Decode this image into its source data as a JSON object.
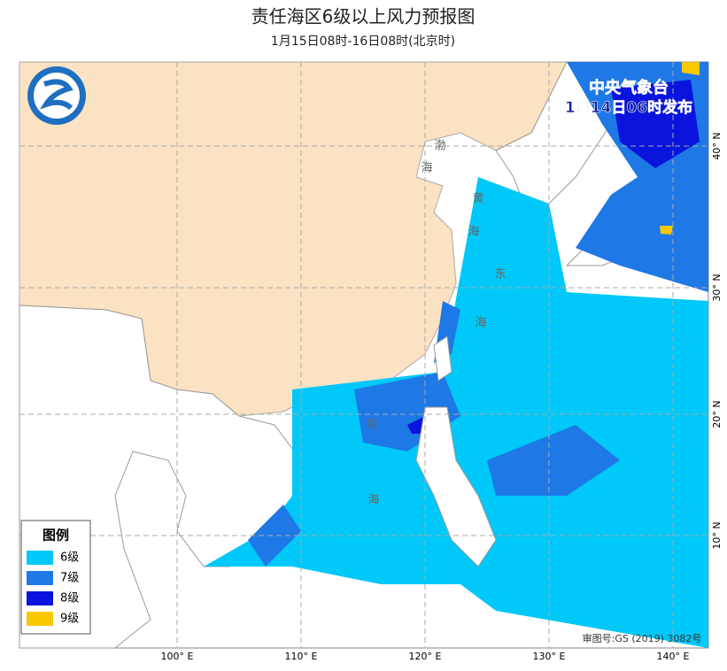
{
  "header": {
    "title": "责任海区6级以上风力预报图",
    "subtitle": "1月15日08时-16日08时(北京时)"
  },
  "issuer": {
    "agency": "中央气象台",
    "issued": "1月14日06时发布"
  },
  "legend": {
    "title": "图例",
    "items": [
      {
        "label": "6级",
        "color": "#00c8f8"
      },
      {
        "label": "7级",
        "color": "#1e78e6"
      },
      {
        "label": "8级",
        "color": "#0a14dc"
      },
      {
        "label": "9级",
        "color": "#f8c800"
      }
    ]
  },
  "longitudes": [
    "100° E",
    "110° E",
    "120° E",
    "130° E",
    "140° E"
  ],
  "latitudes": [
    "40° N",
    "30° N",
    "20° N",
    "10° N"
  ],
  "sea_labels": [
    "渤",
    "海",
    "黄",
    "海",
    "东",
    "海",
    "南",
    "海"
  ],
  "approval": "审图号:GS (2019) 3082号"
}
